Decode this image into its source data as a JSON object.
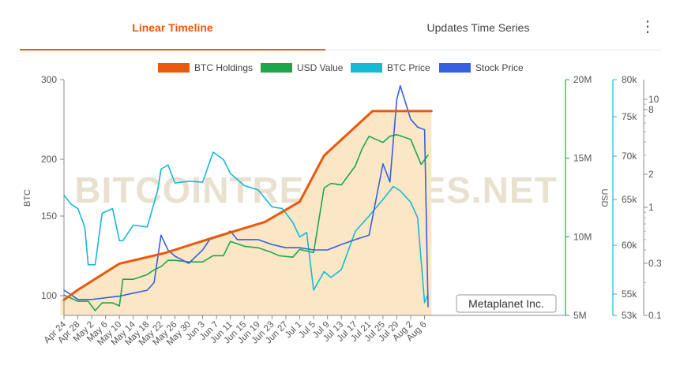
{
  "tabs": [
    {
      "label": "Linear Timeline",
      "active": true
    },
    {
      "label": "Updates Time Series",
      "active": false
    }
  ],
  "menu_icon": "more-vertical-icon",
  "watermark": "BITCOINTREASURIES.NET",
  "company_label": "Metaplanet Inc.",
  "colors": {
    "btc_holdings": "#e8590c",
    "usd_value": "#1fa64a",
    "btc_price": "#17b9d4",
    "stock_price": "#3560e0",
    "area_fill": "#fbe7c6",
    "active_tab": "#e8590c"
  },
  "chart_data": {
    "type": "line",
    "legend_position": "top-center",
    "grid": false,
    "x_ticks": [
      "Apr 24",
      "Apr 28",
      "May 2",
      "May 6",
      "May 10",
      "May 14",
      "May 18",
      "May 22",
      "May 26",
      "May 30",
      "Jun 3",
      "Jun 7",
      "Jun 11",
      "Jun 15",
      "Jun 19",
      "Jun 23",
      "Jun 27",
      "Jul 1",
      "Jul 5",
      "Jul 9",
      "Jul 13",
      "Jul 17",
      "Jul 21",
      "Jul 25",
      "Jul 29",
      "Aug 2",
      "Aug 6"
    ],
    "axes": {
      "btc": {
        "label": "BTC",
        "ticks": [
          "300",
          "200",
          "150",
          "100"
        ]
      },
      "usd": {
        "label": "USD",
        "ticks": [
          "20M",
          "15M",
          "10M",
          "5M"
        ]
      },
      "btc_price": {
        "ticks": [
          "80k",
          "75k",
          "70k",
          "65k",
          "60k",
          "55k",
          "53k"
        ]
      },
      "stock_price": {
        "ticks": [
          "10",
          "8",
          "2",
          "1",
          "0.3",
          "0.1"
        ],
        "scale": "log"
      }
    },
    "series": [
      {
        "name": "BTC Holdings",
        "x": [
          "Apr 23",
          "Apr 28",
          "May 10",
          "May 23",
          "Jun 7",
          "Jun 21",
          "Jul 1",
          "Jul 8",
          "Jul 22",
          "Aug 8"
        ],
        "values": [
          97.9,
          103,
          117.7,
          124.2,
          135.1,
          145.6,
          161.3,
          203.7,
          255.6,
          255.6
        ]
      },
      {
        "name": "USD Value",
        "x": [
          "Apr 24",
          "Apr 26",
          "Apr 28",
          "May 1",
          "May 3",
          "May 5",
          "May 8",
          "May 10",
          "May 11",
          "May 14",
          "May 18",
          "May 20",
          "May 22",
          "May 24",
          "May 26",
          "May 30",
          "Jun 3",
          "Jun 6",
          "Jun 9",
          "Jun 11",
          "Jun 15",
          "Jun 19",
          "Jun 23",
          "Jun 25",
          "Jun 29",
          "Jul 1",
          "Jul 5",
          "Jul 8",
          "Jul 10",
          "Jul 13",
          "Jul 17",
          "Jul 19",
          "Jul 21",
          "Jul 25",
          "Jul 27",
          "Jul 29",
          "Aug 2",
          "Aug 5",
          "Aug 7"
        ],
        "values": [
          6.3,
          6.1,
          5.9,
          5.9,
          5.3,
          5.8,
          5.8,
          5.6,
          7.3,
          7.3,
          7.6,
          7.9,
          8.1,
          8.5,
          8.5,
          8.4,
          8.4,
          8.8,
          8.8,
          9.7,
          9.4,
          9.3,
          9.0,
          8.8,
          8.7,
          9.2,
          9.0,
          13.1,
          13.4,
          13.3,
          14.5,
          15.6,
          16.4,
          16.0,
          16.4,
          16.5,
          16.2,
          14.6,
          15.2
        ]
      },
      {
        "name": "BTC Price",
        "x": [
          "Apr 24",
          "Apr 26",
          "Apr 28",
          "Apr 30",
          "May 1",
          "May 3",
          "May 5",
          "May 8",
          "May 10",
          "May 11",
          "May 14",
          "May 18",
          "May 21",
          "May 22",
          "May 24",
          "May 26",
          "May 30",
          "Jun 3",
          "Jun 6",
          "Jun 7",
          "Jun 9",
          "Jun 11",
          "Jun 15",
          "Jun 19",
          "Jun 23",
          "Jun 26",
          "Jun 29",
          "Jul 1",
          "Jul 3",
          "Jul 5",
          "Jul 8",
          "Jul 10",
          "Jul 13",
          "Jul 17",
          "Jul 21",
          "Jul 25",
          "Jul 28",
          "Jul 30",
          "Aug 2",
          "Aug 4",
          "Aug 6",
          "Aug 7"
        ],
        "values": [
          65.5,
          64.5,
          64.0,
          62.0,
          58.0,
          58.0,
          63.5,
          64.0,
          60.5,
          60.5,
          62.2,
          62.0,
          66.0,
          68.5,
          69.0,
          66.9,
          67.1,
          67.0,
          70.5,
          70.2,
          69.6,
          68.0,
          66.6,
          66.1,
          64.2,
          64.0,
          62.5,
          60.9,
          61.4,
          55.4,
          57.3,
          56.7,
          57.5,
          61.5,
          63.2,
          65.0,
          66.5,
          66.0,
          64.7,
          63.0,
          54.2,
          55.0
        ]
      },
      {
        "name": "Stock Price",
        "x": [
          "Apr 24",
          "Apr 26",
          "Apr 28",
          "May 2",
          "May 6",
          "May 10",
          "May 14",
          "May 18",
          "May 20",
          "May 22",
          "May 24",
          "May 26",
          "May 30",
          "Jun 3",
          "Jun 5",
          "Jun 9",
          "Jun 11",
          "Jun 13",
          "Jun 15",
          "Jun 19",
          "Jun 23",
          "Jun 27",
          "Jul 1",
          "Jul 5",
          "Jul 9",
          "Jul 13",
          "Jul 17",
          "Jul 21",
          "Jul 25",
          "Jul 27",
          "Jul 29",
          "Jul 30",
          "Aug 2",
          "Aug 4",
          "Aug 6",
          "Aug 7"
        ],
        "values": [
          0.17,
          0.155,
          0.14,
          0.14,
          0.145,
          0.15,
          0.16,
          0.17,
          0.2,
          0.55,
          0.4,
          0.35,
          0.3,
          0.4,
          0.5,
          0.55,
          0.6,
          0.5,
          0.5,
          0.5,
          0.45,
          0.42,
          0.42,
          0.4,
          0.4,
          0.45,
          0.5,
          0.55,
          2.5,
          1.7,
          10.0,
          15.0,
          6.5,
          5.5,
          5.2,
          0.12
        ]
      }
    ]
  }
}
